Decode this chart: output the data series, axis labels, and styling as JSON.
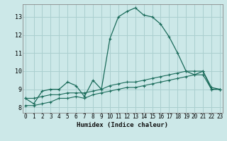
{
  "xlabel": "Humidex (Indice chaleur)",
  "ylabel": "",
  "background_color": "#cce8e8",
  "grid_color": "#aacfcf",
  "line_color": "#1a6b5a",
  "x_ticks": [
    0,
    1,
    2,
    3,
    4,
    5,
    6,
    7,
    8,
    9,
    10,
    11,
    12,
    13,
    14,
    15,
    16,
    17,
    18,
    19,
    20,
    21,
    22,
    23
  ],
  "y_ticks": [
    8,
    9,
    10,
    11,
    12,
    13
  ],
  "ylim": [
    7.7,
    13.7
  ],
  "xlim": [
    -0.3,
    23.3
  ],
  "series": [
    [
      8.5,
      8.2,
      8.9,
      9.0,
      9.0,
      9.4,
      9.2,
      8.6,
      9.5,
      9.0,
      11.8,
      13.0,
      13.3,
      13.5,
      13.1,
      13.0,
      12.6,
      11.9,
      11.0,
      10.0,
      9.8,
      10.0,
      9.1,
      9.0
    ],
    [
      8.5,
      8.5,
      8.6,
      8.7,
      8.7,
      8.8,
      8.8,
      8.8,
      8.9,
      9.0,
      9.2,
      9.3,
      9.4,
      9.4,
      9.5,
      9.6,
      9.7,
      9.8,
      9.9,
      10.0,
      10.0,
      10.0,
      9.0,
      9.0
    ],
    [
      8.1,
      8.1,
      8.2,
      8.3,
      8.5,
      8.5,
      8.6,
      8.5,
      8.7,
      8.8,
      8.9,
      9.0,
      9.1,
      9.1,
      9.2,
      9.3,
      9.4,
      9.5,
      9.6,
      9.7,
      9.8,
      9.8,
      9.0,
      9.0
    ]
  ]
}
